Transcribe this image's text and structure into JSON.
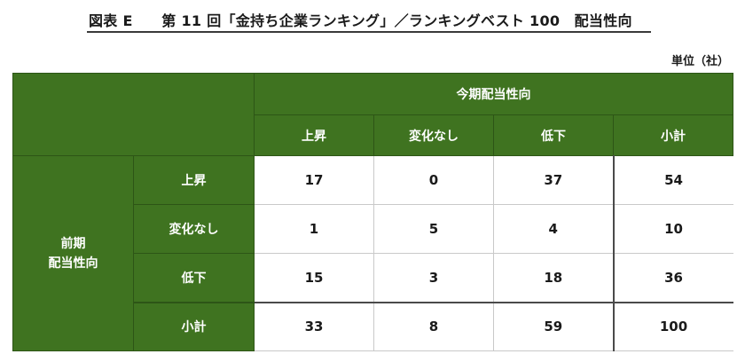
{
  "header": {
    "title": "図表 E　　第 11 回「金持ち企業ランキング」／ランキングベスト 100　配当性向",
    "unit": "単位（社）"
  },
  "table": {
    "top_header": "今期配当性向",
    "left_header_line1": "前期",
    "left_header_line2": "配当性向",
    "columns": [
      "上昇",
      "変化なし",
      "低下",
      "小計"
    ],
    "rows": [
      {
        "label": "上昇",
        "values": [
          "17",
          "0",
          "37",
          "54"
        ]
      },
      {
        "label": "変化なし",
        "values": [
          "1",
          "5",
          "4",
          "10"
        ]
      },
      {
        "label": "低下",
        "values": [
          "15",
          "3",
          "18",
          "36"
        ]
      }
    ],
    "total_row": {
      "label": "小計",
      "values": [
        "33",
        "8",
        "59",
        "100"
      ]
    }
  },
  "colors": {
    "header_green": "#3f7320",
    "text": "#1a1a1a"
  }
}
